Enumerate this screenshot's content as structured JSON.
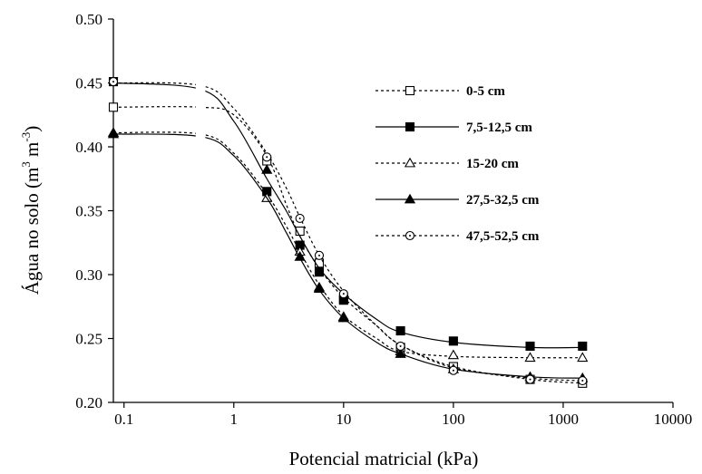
{
  "chart_data": {
    "type": "line",
    "title": "",
    "xlabel": "Potencial matricial (kPa)",
    "ylabel_main": "Água no solo (m",
    "ylabel_sup1": "3",
    "ylabel_mid": " m",
    "ylabel_sup2": "-3",
    "ylabel_end": ")",
    "xscale": "log",
    "xlim": [
      0.08,
      10000
    ],
    "ylim": [
      0.2,
      0.5
    ],
    "x_ticks": [
      0.1,
      1,
      10,
      100,
      1000,
      10000
    ],
    "x_tick_labels": [
      "0.1",
      "1",
      "10",
      "100",
      "1000",
      "10000"
    ],
    "y_ticks": [
      0.2,
      0.25,
      0.3,
      0.35,
      0.4,
      0.45,
      0.5
    ],
    "y_tick_labels": [
      "0.20",
      "0.25",
      "0.30",
      "0.35",
      "0.40",
      "0.45",
      "0.50"
    ],
    "grid": false,
    "legend_position": "right",
    "x": [
      0.08,
      2,
      4,
      6,
      10,
      33,
      100,
      500,
      1500
    ],
    "series": [
      {
        "name": "0-5 cm",
        "marker": "open-square",
        "line": "dotted",
        "values": [
          0.431,
          0.389,
          0.334,
          0.309,
          0.281,
          0.243,
          0.228,
          0.218,
          0.215
        ],
        "fit": [
          [
            0.08,
            0.431
          ],
          [
            0.5,
            0.431
          ],
          [
            1,
            0.425
          ],
          [
            2,
            0.393
          ],
          [
            3,
            0.355
          ],
          [
            4,
            0.33
          ],
          [
            6,
            0.305
          ],
          [
            10,
            0.282
          ],
          [
            20,
            0.26
          ],
          [
            33,
            0.245
          ],
          [
            100,
            0.228
          ],
          [
            500,
            0.218
          ],
          [
            1500,
            0.215
          ]
        ]
      },
      {
        "name": "7,5-12,5 cm",
        "marker": "filled-square",
        "line": "solid",
        "values": [
          0.451,
          0.365,
          0.323,
          0.302,
          0.28,
          0.256,
          0.248,
          0.244,
          0.244
        ],
        "fit": [
          [
            0.08,
            0.45
          ],
          [
            0.5,
            0.445
          ],
          [
            1,
            0.42
          ],
          [
            2,
            0.375
          ],
          [
            3,
            0.35
          ],
          [
            4,
            0.33
          ],
          [
            6,
            0.305
          ],
          [
            10,
            0.285
          ],
          [
            20,
            0.265
          ],
          [
            33,
            0.255
          ],
          [
            100,
            0.247
          ],
          [
            500,
            0.243
          ],
          [
            1500,
            0.243
          ]
        ]
      },
      {
        "name": "15-20 cm",
        "marker": "open-triangle",
        "line": "dotted",
        "values": [
          0.411,
          0.36,
          0.318,
          0.29,
          0.267,
          0.24,
          0.237,
          0.235,
          0.235
        ],
        "fit": [
          [
            0.08,
            0.411
          ],
          [
            0.5,
            0.41
          ],
          [
            1,
            0.395
          ],
          [
            2,
            0.363
          ],
          [
            3,
            0.338
          ],
          [
            4,
            0.318
          ],
          [
            6,
            0.292
          ],
          [
            10,
            0.268
          ],
          [
            20,
            0.25
          ],
          [
            33,
            0.24
          ],
          [
            100,
            0.236
          ],
          [
            500,
            0.235
          ],
          [
            1500,
            0.235
          ]
        ]
      },
      {
        "name": "27,5-32,5 cm",
        "marker": "filled-triangle",
        "line": "solid",
        "values": [
          0.41,
          0.382,
          0.314,
          0.289,
          0.266,
          0.238,
          0.226,
          0.22,
          0.219
        ],
        "fit": [
          [
            0.08,
            0.41
          ],
          [
            0.5,
            0.408
          ],
          [
            1,
            0.393
          ],
          [
            2,
            0.36
          ],
          [
            3,
            0.333
          ],
          [
            4,
            0.313
          ],
          [
            6,
            0.288
          ],
          [
            10,
            0.266
          ],
          [
            20,
            0.247
          ],
          [
            33,
            0.238
          ],
          [
            100,
            0.226
          ],
          [
            500,
            0.22
          ],
          [
            1500,
            0.219
          ]
        ]
      },
      {
        "name": "47,5-52,5 cm",
        "marker": "open-circle",
        "line": "dotted",
        "values": [
          0.451,
          0.392,
          0.344,
          0.315,
          0.285,
          0.244,
          0.225,
          0.218,
          0.217
        ],
        "fit": [
          [
            0.08,
            0.45
          ],
          [
            0.5,
            0.448
          ],
          [
            1,
            0.43
          ],
          [
            2,
            0.395
          ],
          [
            3,
            0.368
          ],
          [
            4,
            0.345
          ],
          [
            6,
            0.315
          ],
          [
            10,
            0.287
          ],
          [
            20,
            0.26
          ],
          [
            33,
            0.245
          ],
          [
            100,
            0.227
          ],
          [
            500,
            0.219
          ],
          [
            1500,
            0.217
          ]
        ]
      }
    ]
  }
}
